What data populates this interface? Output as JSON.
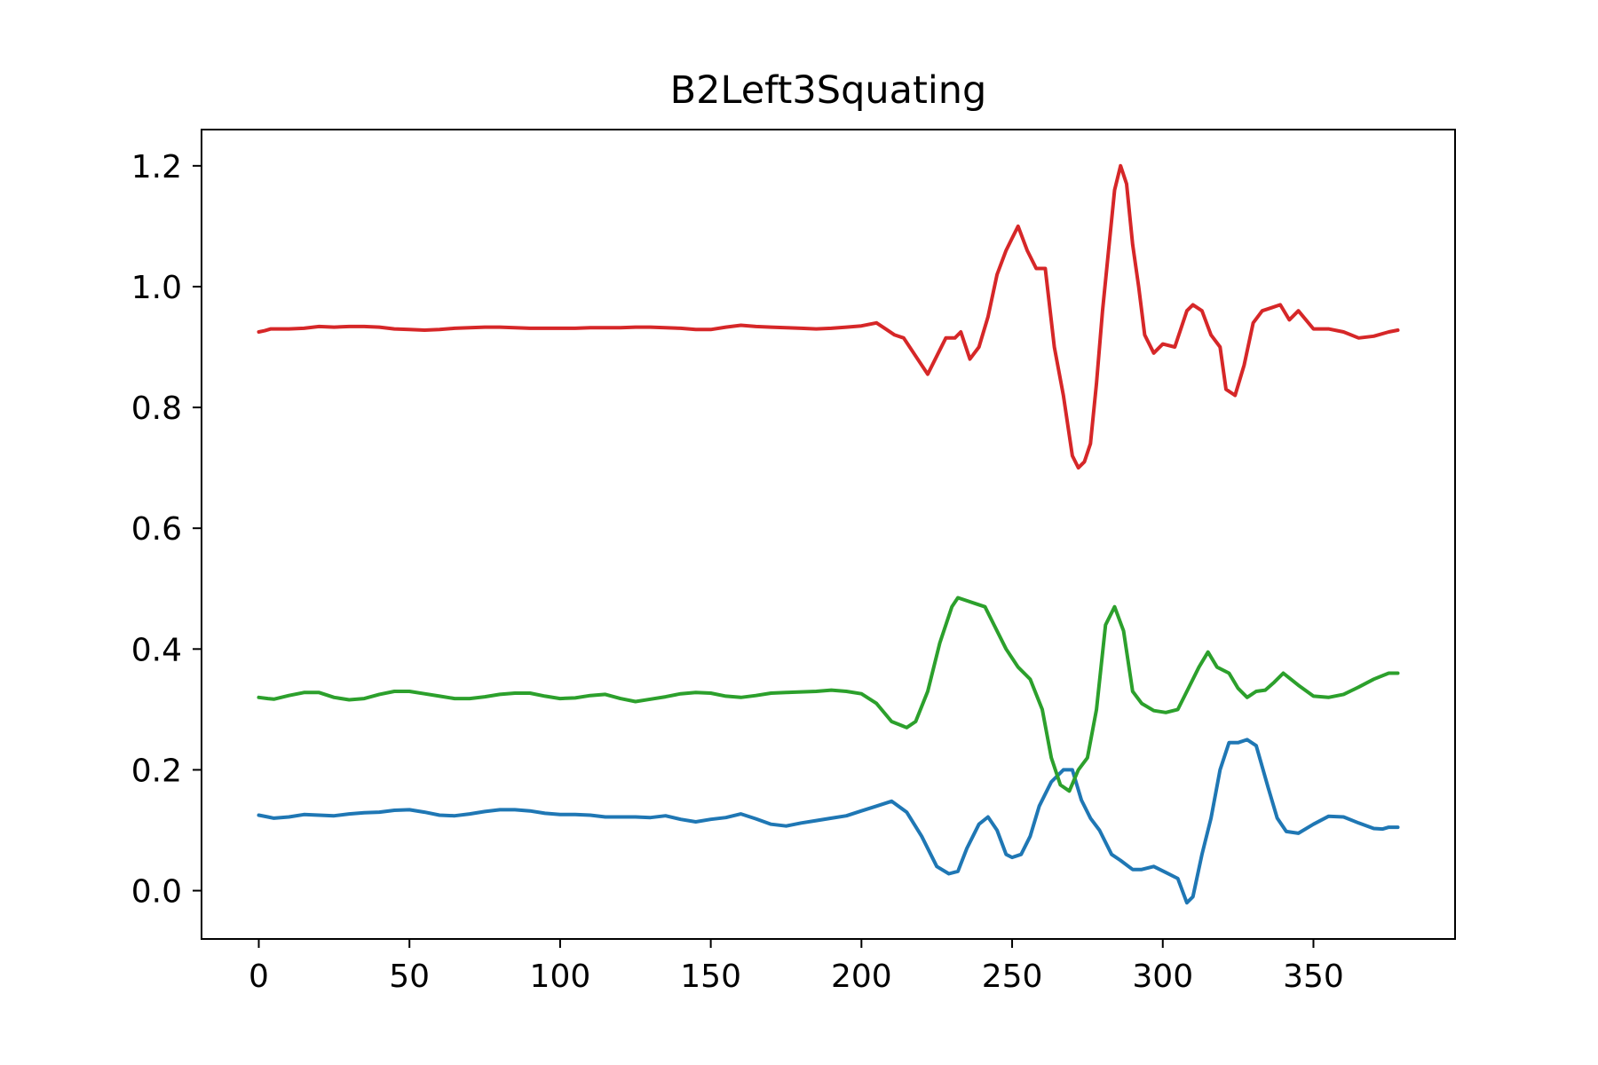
{
  "chart_data": {
    "type": "line",
    "title": "B2Left3Squating",
    "xlabel": "",
    "ylabel": "",
    "xlim": [
      -19,
      397
    ],
    "ylim": [
      -0.08,
      1.26
    ],
    "x_ticks": [
      0,
      50,
      100,
      150,
      200,
      250,
      300,
      350
    ],
    "x_tick_labels": [
      "0",
      "50",
      "100",
      "150",
      "200",
      "250",
      "300",
      "350"
    ],
    "y_ticks": [
      0.0,
      0.2,
      0.4,
      0.6,
      0.8,
      1.0,
      1.2
    ],
    "y_tick_labels": [
      "0.0",
      "0.2",
      "0.4",
      "0.6",
      "0.8",
      "1.0",
      "1.2"
    ],
    "grid": false,
    "legend": "none",
    "series": [
      {
        "color": "#1f77b4",
        "x": [
          0,
          3,
          5,
          10,
          15,
          20,
          25,
          30,
          35,
          40,
          45,
          50,
          55,
          60,
          65,
          70,
          75,
          80,
          85,
          90,
          95,
          100,
          105,
          110,
          115,
          120,
          125,
          130,
          135,
          140,
          145,
          150,
          155,
          160,
          165,
          170,
          175,
          180,
          185,
          190,
          195,
          200,
          205,
          210,
          215,
          220,
          225,
          229,
          232,
          235,
          239,
          242,
          245,
          248,
          250,
          253,
          256,
          259,
          263,
          267,
          270,
          273,
          276,
          279,
          283,
          286,
          290,
          293,
          297,
          301,
          305,
          308,
          310,
          313,
          316,
          319,
          322,
          325,
          328,
          331,
          335,
          338,
          341,
          345,
          350,
          355,
          360,
          365,
          370,
          373,
          375,
          378
        ],
        "y": [
          0.125,
          0.122,
          0.12,
          0.122,
          0.126,
          0.125,
          0.124,
          0.127,
          0.129,
          0.13,
          0.133,
          0.134,
          0.13,
          0.125,
          0.124,
          0.127,
          0.131,
          0.134,
          0.134,
          0.132,
          0.128,
          0.126,
          0.126,
          0.125,
          0.122,
          0.122,
          0.122,
          0.121,
          0.124,
          0.118,
          0.114,
          0.118,
          0.121,
          0.127,
          0.119,
          0.11,
          0.107,
          0.112,
          0.116,
          0.12,
          0.124,
          0.132,
          0.14,
          0.148,
          0.13,
          0.09,
          0.04,
          0.028,
          0.032,
          0.07,
          0.11,
          0.122,
          0.1,
          0.06,
          0.055,
          0.06,
          0.09,
          0.14,
          0.18,
          0.2,
          0.2,
          0.15,
          0.12,
          0.1,
          0.06,
          0.05,
          0.035,
          0.035,
          0.04,
          0.03,
          0.02,
          -0.02,
          -0.01,
          0.06,
          0.12,
          0.2,
          0.245,
          0.245,
          0.25,
          0.24,
          0.17,
          0.12,
          0.098,
          0.095,
          0.11,
          0.123,
          0.122,
          0.112,
          0.103,
          0.102,
          0.105,
          0.105
        ]
      },
      {
        "color": "#2ca02c",
        "x": [
          0,
          3,
          5,
          10,
          15,
          20,
          25,
          30,
          35,
          40,
          45,
          50,
          55,
          60,
          65,
          70,
          75,
          80,
          85,
          90,
          95,
          100,
          105,
          110,
          115,
          120,
          125,
          130,
          135,
          140,
          145,
          150,
          155,
          160,
          165,
          170,
          175,
          180,
          185,
          190,
          195,
          200,
          205,
          210,
          215,
          218,
          222,
          226,
          230,
          232,
          235,
          238,
          241,
          244,
          248,
          252,
          256,
          260,
          263,
          266,
          269,
          272,
          275,
          278,
          281,
          284,
          287,
          290,
          293,
          297,
          301,
          305,
          308,
          312,
          315,
          318,
          322,
          325,
          328,
          331,
          334,
          337,
          340,
          345,
          350,
          355,
          360,
          365,
          370,
          375,
          378
        ],
        "y": [
          0.32,
          0.318,
          0.317,
          0.323,
          0.328,
          0.328,
          0.32,
          0.316,
          0.318,
          0.325,
          0.33,
          0.33,
          0.326,
          0.322,
          0.318,
          0.318,
          0.321,
          0.325,
          0.327,
          0.327,
          0.322,
          0.318,
          0.319,
          0.323,
          0.325,
          0.318,
          0.313,
          0.317,
          0.321,
          0.326,
          0.328,
          0.327,
          0.322,
          0.32,
          0.323,
          0.327,
          0.328,
          0.329,
          0.33,
          0.332,
          0.33,
          0.326,
          0.31,
          0.28,
          0.27,
          0.28,
          0.33,
          0.41,
          0.47,
          0.485,
          0.48,
          0.475,
          0.47,
          0.44,
          0.4,
          0.37,
          0.35,
          0.3,
          0.22,
          0.175,
          0.165,
          0.2,
          0.22,
          0.3,
          0.44,
          0.47,
          0.43,
          0.33,
          0.31,
          0.298,
          0.295,
          0.3,
          0.33,
          0.37,
          0.395,
          0.37,
          0.36,
          0.335,
          0.32,
          0.33,
          0.332,
          0.345,
          0.36,
          0.34,
          0.322,
          0.32,
          0.325,
          0.337,
          0.35,
          0.36,
          0.36
        ]
      },
      {
        "color": "#d62728",
        "x": [
          0,
          2,
          4,
          5,
          8,
          10,
          15,
          20,
          25,
          30,
          35,
          40,
          45,
          50,
          55,
          60,
          65,
          70,
          75,
          80,
          85,
          90,
          95,
          100,
          105,
          110,
          115,
          120,
          125,
          130,
          135,
          140,
          145,
          150,
          155,
          160,
          165,
          170,
          175,
          180,
          185,
          190,
          195,
          200,
          205,
          208,
          211,
          214,
          218,
          222,
          225,
          228,
          231,
          233,
          236,
          239,
          242,
          245,
          248,
          250,
          252,
          255,
          258,
          261,
          264,
          267,
          270,
          272,
          274,
          276,
          278,
          280,
          282,
          284,
          286,
          288,
          290,
          292,
          294,
          297,
          300,
          304,
          308,
          310,
          313,
          316,
          319,
          321,
          324,
          327,
          330,
          333,
          336,
          339,
          342,
          345,
          350,
          355,
          360,
          365,
          370,
          375,
          378
        ],
        "y": [
          0.925,
          0.927,
          0.93,
          0.93,
          0.93,
          0.93,
          0.931,
          0.934,
          0.933,
          0.934,
          0.934,
          0.933,
          0.93,
          0.929,
          0.928,
          0.929,
          0.931,
          0.932,
          0.933,
          0.933,
          0.932,
          0.931,
          0.931,
          0.931,
          0.931,
          0.932,
          0.932,
          0.932,
          0.933,
          0.933,
          0.932,
          0.931,
          0.929,
          0.929,
          0.933,
          0.936,
          0.934,
          0.933,
          0.932,
          0.931,
          0.93,
          0.931,
          0.933,
          0.935,
          0.94,
          0.93,
          0.92,
          0.915,
          0.885,
          0.855,
          0.885,
          0.915,
          0.915,
          0.925,
          0.88,
          0.9,
          0.95,
          1.02,
          1.06,
          1.08,
          1.1,
          1.06,
          1.03,
          1.03,
          0.9,
          0.82,
          0.72,
          0.7,
          0.71,
          0.74,
          0.84,
          0.96,
          1.06,
          1.16,
          1.2,
          1.17,
          1.07,
          1.0,
          0.92,
          0.89,
          0.905,
          0.9,
          0.96,
          0.97,
          0.96,
          0.92,
          0.9,
          0.83,
          0.82,
          0.87,
          0.94,
          0.96,
          0.965,
          0.97,
          0.945,
          0.96,
          0.93,
          0.93,
          0.925,
          0.915,
          0.918,
          0.925,
          0.928
        ]
      }
    ]
  }
}
